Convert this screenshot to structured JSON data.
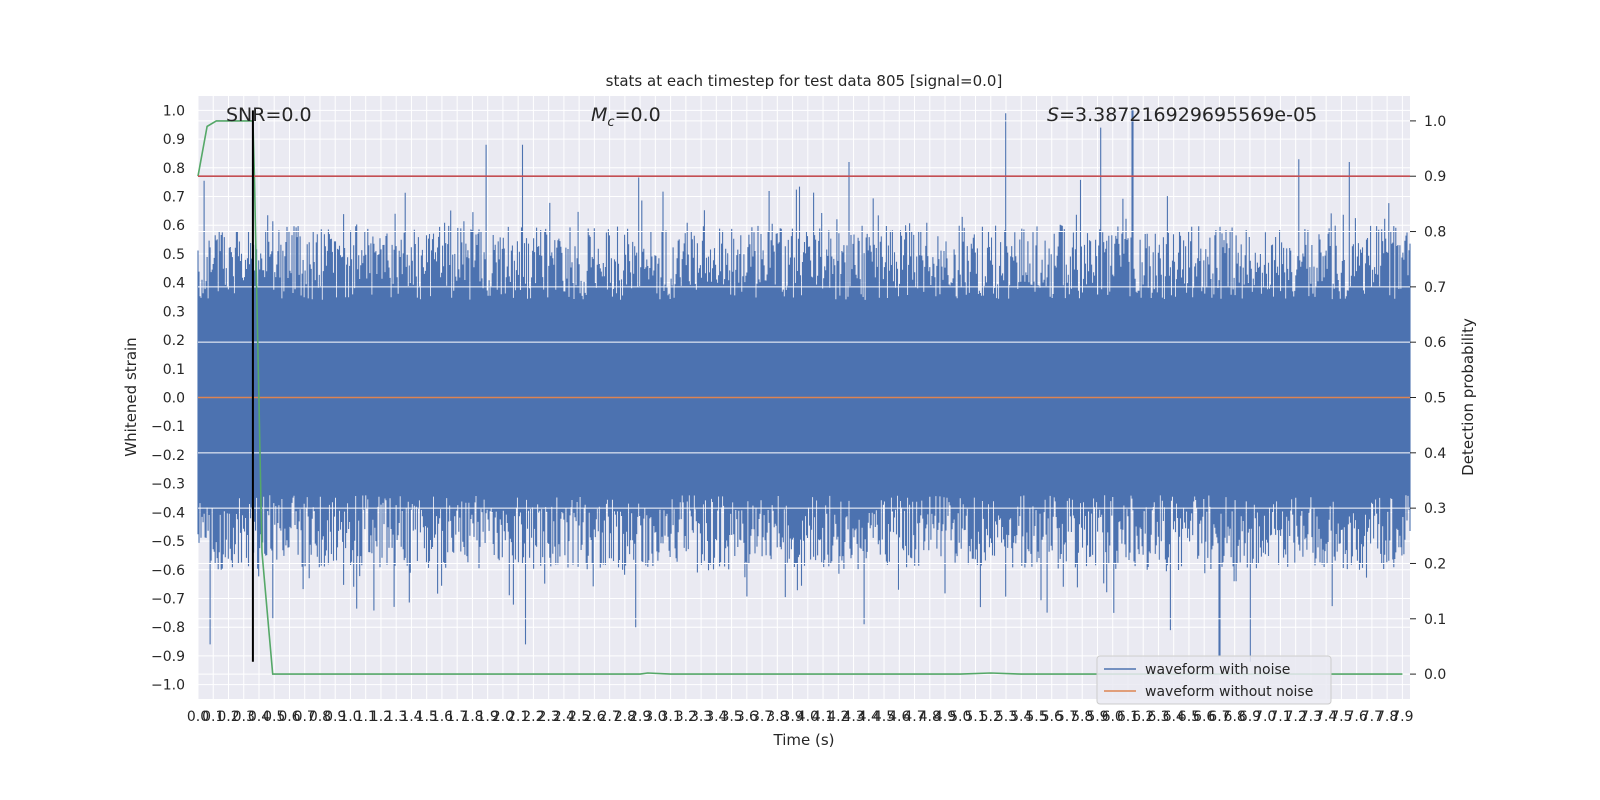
{
  "chart_data": {
    "type": "line",
    "title": "stats at each timestep for test data 805 [signal=0.0]",
    "xlabel": "Time (s)",
    "ylabel": "Whitened strain",
    "y2label": "Detection probability",
    "xlim": [
      0.0,
      7.95
    ],
    "ylim": [
      -1.05,
      1.05
    ],
    "y2lim": [
      -0.045,
      1.045
    ],
    "x_ticks": [
      "0.0",
      "0.1",
      "0.2",
      "0.3",
      "0.4",
      "0.5",
      "0.6",
      "0.7",
      "0.8",
      "0.9",
      "1.0",
      "1.1",
      "1.2",
      "1.3",
      "1.4",
      "1.5",
      "1.6",
      "1.7",
      "1.8",
      "1.9",
      "2.0",
      "2.1",
      "2.2",
      "2.3",
      "2.4",
      "2.5",
      "2.6",
      "2.7",
      "2.8",
      "2.9",
      "3.0",
      "3.1",
      "3.2",
      "3.3",
      "3.4",
      "3.5",
      "3.6",
      "3.7",
      "3.8",
      "3.9",
      "4.0",
      "4.1",
      "4.2",
      "4.3",
      "4.4",
      "4.5",
      "4.6",
      "4.7",
      "4.8",
      "4.9",
      "5.0",
      "5.1",
      "5.2",
      "5.3",
      "5.4",
      "5.5",
      "5.6",
      "5.7",
      "5.8",
      "5.9",
      "6.0",
      "6.1",
      "6.2",
      "6.3",
      "6.4",
      "6.5",
      "6.6",
      "6.7",
      "6.8",
      "6.9",
      "7.0",
      "7.1",
      "7.2",
      "7.3",
      "7.4",
      "7.5",
      "7.6",
      "7.7",
      "7.8",
      "7.9"
    ],
    "y_ticks": [
      "1.0",
      "0.9",
      "0.8",
      "0.7",
      "0.6",
      "0.5",
      "0.4",
      "0.3",
      "0.2",
      "0.1",
      "0.0",
      "−0.1",
      "−0.2",
      "−0.3",
      "−0.4",
      "−0.5",
      "−0.6",
      "−0.7",
      "−0.8",
      "−0.9",
      "−1.0"
    ],
    "y2_ticks": [
      "1.0",
      "0.9",
      "0.8",
      "0.7",
      "0.6",
      "0.5",
      "0.4",
      "0.3",
      "0.2",
      "0.1",
      "0.0"
    ],
    "annotations": {
      "snr": "SNR=0.0",
      "mc_symbol": "M",
      "mc_sub": "c",
      "mc_value": "=0.0",
      "s_symbol": "S",
      "s_value": "=3.387216929695569e-05"
    },
    "noise_envelope": {
      "description_values_only": true,
      "seed": 805,
      "n_samples": 1200,
      "upper_peaks": [
        [
          1.89,
          0.88
        ],
        [
          2.13,
          0.88
        ],
        [
          5.3,
          0.99
        ],
        [
          5.92,
          0.94
        ],
        [
          6.13,
          1.0
        ],
        [
          4.27,
          0.82
        ],
        [
          7.22,
          0.83
        ],
        [
          7.55,
          0.82
        ]
      ],
      "lower_peaks": [
        [
          6.7,
          -0.9
        ],
        [
          6.9,
          -0.92
        ],
        [
          0.08,
          -0.86
        ],
        [
          2.15,
          -0.86
        ],
        [
          6.38,
          -0.81
        ],
        [
          2.87,
          -0.8
        ],
        [
          4.37,
          -0.79
        ]
      ]
    },
    "series": [
      {
        "name": "waveform with noise",
        "color": "#4c72b0",
        "axis": "left"
      },
      {
        "name": "waveform without noise",
        "color": "#dd8452",
        "axis": "left",
        "x": [
          0.0,
          7.95
        ],
        "y": [
          0.0,
          0.0
        ]
      },
      {
        "axis": "right",
        "color": "#55a868",
        "x": [
          0.0,
          0.06,
          0.12,
          0.2,
          0.28,
          0.36,
          0.37,
          0.42,
          0.49,
          1.0,
          2.0,
          2.9,
          2.95,
          3.1,
          4.0,
          5.0,
          5.2,
          5.4,
          6.0,
          7.0,
          7.9
        ],
        "y": [
          0.9,
          0.99,
          1.0,
          1.0,
          1.0,
          1.0,
          0.9,
          0.22,
          0.0,
          0.0,
          0.0,
          0.0,
          0.002,
          0.0,
          0.0,
          0.0,
          0.002,
          0.0,
          0.0,
          0.0,
          0.0
        ]
      },
      {
        "axis": "right",
        "color": "#c44e52",
        "x": [
          0.0,
          7.95
        ],
        "y": [
          0.9,
          0.9
        ]
      },
      {
        "axis": "left",
        "color": "#000000",
        "x": [
          0.36,
          0.36
        ],
        "y": [
          1.0,
          -0.92
        ]
      }
    ],
    "legend": {
      "position": "lower-right",
      "entries": [
        "waveform with noise",
        "waveform without noise"
      ]
    },
    "grid": true
  }
}
